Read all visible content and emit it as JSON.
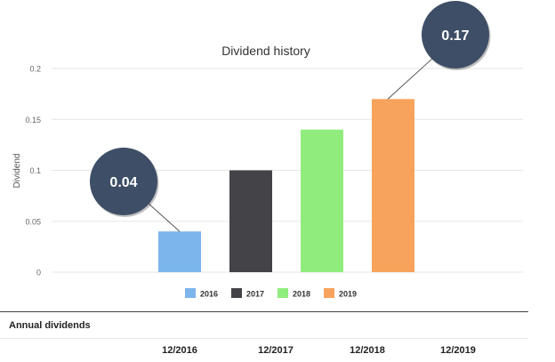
{
  "chart_data": {
    "type": "bar",
    "title": "Dividend history",
    "ylabel": "Dividend",
    "ylim": [
      0,
      0.2
    ],
    "yticks": [
      "0",
      "0.05",
      "0.1",
      "0.15",
      "0.2"
    ],
    "grid": true,
    "legend": "bottom",
    "categories": [
      "2016",
      "2017",
      "2018",
      "2019"
    ],
    "values": [
      0.04,
      0.1,
      0.14,
      0.17
    ],
    "colors": [
      "#7cb5ec",
      "#434348",
      "#90ed7d",
      "#f7a35c"
    ],
    "callouts": [
      {
        "category": "2016",
        "label": "0.04"
      },
      {
        "category": "2019",
        "label": "0.17"
      }
    ]
  },
  "table": {
    "title": "Annual dividends",
    "columns": [
      "12/2016",
      "12/2017",
      "12/2018",
      "12/2019"
    ]
  },
  "colors": {
    "callout_fill": "#3d4e66",
    "gridline": "#e6e6e6"
  }
}
